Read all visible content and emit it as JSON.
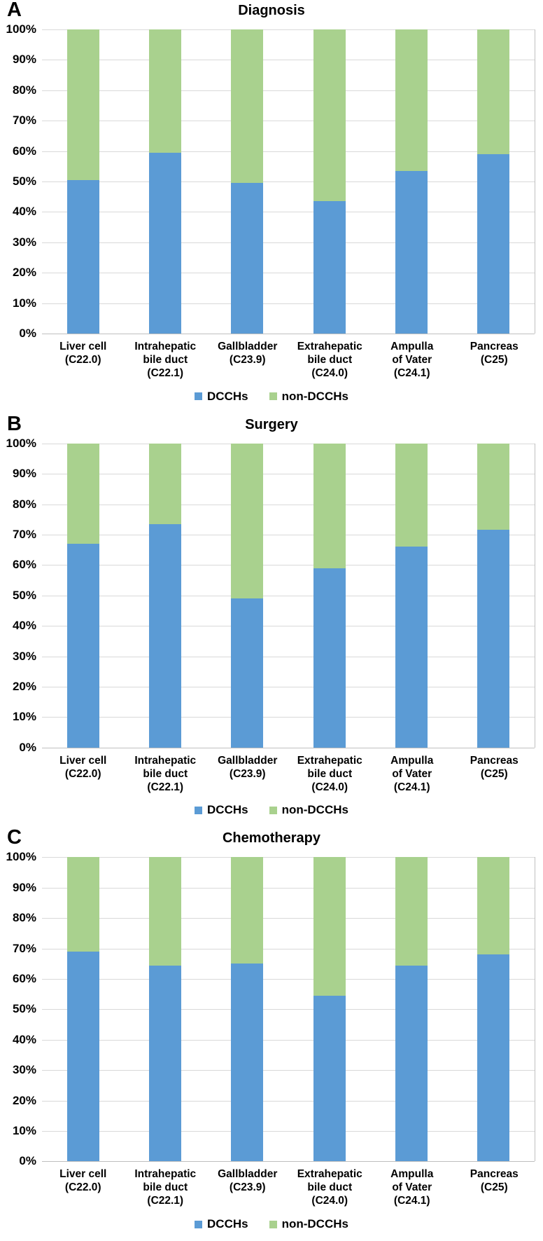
{
  "y_axis": {
    "ticks": [
      "100%",
      "90%",
      "80%",
      "70%",
      "60%",
      "50%",
      "40%",
      "30%",
      "20%",
      "10%",
      "0%"
    ],
    "min": 0,
    "max": 100,
    "grid": true
  },
  "legend": {
    "position": "bottom-center",
    "items": [
      {
        "label": "DCCHs",
        "color": "#5B9BD5"
      },
      {
        "label": "non-DCCHs",
        "color": "#A9D18E"
      }
    ]
  },
  "chart_data": [
    {
      "type": "bar",
      "stacked": true,
      "panel_label": "A",
      "title": "Diagnosis",
      "ylabel": "",
      "xlabel": "",
      "ylim": [
        0,
        100
      ],
      "categories": [
        "Liver cell\n(C22.0)",
        "Intrahepatic\nbile duct\n(C22.1)",
        "Gallbladder\n(C23.9)",
        "Extrahepatic\nbile duct\n(C24.0)",
        "Ampulla\nof Vater\n(C24.1)",
        "Pancreas\n(C25)"
      ],
      "series": [
        {
          "name": "DCCHs",
          "color": "#5B9BD5",
          "values": [
            50.5,
            59.5,
            49.5,
            43.5,
            53.5,
            59
          ]
        },
        {
          "name": "non-DCCHs",
          "color": "#A9D18E",
          "values": [
            49.5,
            40.5,
            50.5,
            56.5,
            46.5,
            41
          ]
        }
      ]
    },
    {
      "type": "bar",
      "stacked": true,
      "panel_label": "B",
      "title": "Surgery",
      "ylabel": "",
      "xlabel": "",
      "ylim": [
        0,
        100
      ],
      "categories": [
        "Liver cell\n(C22.0)",
        "Intrahepatic\nbile duct\n(C22.1)",
        "Gallbladder\n(C23.9)",
        "Extrahepatic\nbile duct\n(C24.0)",
        "Ampulla\nof Vater\n(C24.1)",
        "Pancreas\n(C25)"
      ],
      "series": [
        {
          "name": "DCCHs",
          "color": "#5B9BD5",
          "values": [
            67,
            73.5,
            49,
            59,
            66,
            71.5
          ]
        },
        {
          "name": "non-DCCHs",
          "color": "#A9D18E",
          "values": [
            33,
            26.5,
            51,
            41,
            34,
            28.5
          ]
        }
      ]
    },
    {
      "type": "bar",
      "stacked": true,
      "panel_label": "C",
      "title": "Chemotherapy",
      "ylabel": "",
      "xlabel": "",
      "ylim": [
        0,
        100
      ],
      "categories": [
        "Liver cell\n(C22.0)",
        "Intrahepatic\nbile duct\n(C22.1)",
        "Gallbladder\n(C23.9)",
        "Extrahepatic\nbile duct\n(C24.0)",
        "Ampulla\nof Vater\n(C24.1)",
        "Pancreas\n(C25)"
      ],
      "series": [
        {
          "name": "DCCHs",
          "color": "#5B9BD5",
          "values": [
            69,
            64.5,
            65,
            54.5,
            64.5,
            68
          ]
        },
        {
          "name": "non-DCCHs",
          "color": "#A9D18E",
          "values": [
            31,
            35.5,
            35,
            45.5,
            35.5,
            32
          ]
        }
      ]
    }
  ]
}
